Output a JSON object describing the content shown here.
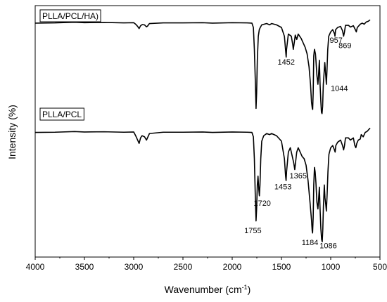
{
  "chart_data": {
    "type": "line",
    "xlabel": "Wavenumber (cm",
    "xlabel_sup": "-1",
    "xlabel_end": ")",
    "ylabel": "Intensity (%)",
    "xlim": [
      4000,
      500
    ],
    "ylim": [
      0,
      100
    ],
    "x_ticks": [
      4000,
      3500,
      3000,
      2500,
      2000,
      1500,
      1000,
      500
    ],
    "grid": false,
    "series": [
      {
        "name": "PLLA/PCL/HA)",
        "offset": 50,
        "color": "#000000",
        "baseline": 42,
        "points": [
          [
            4000,
            42
          ],
          [
            3800,
            42.1
          ],
          [
            3600,
            42.4
          ],
          [
            3500,
            42.2
          ],
          [
            3300,
            42.3
          ],
          [
            3100,
            42.1
          ],
          [
            3000,
            42.2
          ],
          [
            2980,
            41.5
          ],
          [
            2960,
            40.5
          ],
          [
            2945,
            39.5
          ],
          [
            2930,
            40.8
          ],
          [
            2915,
            41.3
          ],
          [
            2890,
            41.2
          ],
          [
            2870,
            40.3
          ],
          [
            2860,
            40.6
          ],
          [
            2840,
            41.8
          ],
          [
            2700,
            42.1
          ],
          [
            2500,
            42.1
          ],
          [
            2300,
            42.2
          ],
          [
            2200,
            42.0
          ],
          [
            2000,
            42.2
          ],
          [
            1850,
            42.1
          ],
          [
            1800,
            42.0
          ],
          [
            1785,
            40
          ],
          [
            1775,
            30
          ],
          [
            1765,
            15
          ],
          [
            1758,
            3
          ],
          [
            1752,
            10
          ],
          [
            1745,
            25
          ],
          [
            1735,
            36
          ],
          [
            1725,
            39
          ],
          [
            1715,
            40
          ],
          [
            1700,
            41.2
          ],
          [
            1650,
            41.8
          ],
          [
            1620,
            41.2
          ],
          [
            1600,
            41.8
          ],
          [
            1550,
            41.2
          ],
          [
            1500,
            40
          ],
          [
            1470,
            36
          ],
          [
            1455,
            28
          ],
          [
            1452,
            26.5
          ],
          [
            1448,
            30
          ],
          [
            1430,
            37
          ],
          [
            1400,
            36
          ],
          [
            1385,
            32
          ],
          [
            1380,
            30
          ],
          [
            1370,
            33
          ],
          [
            1360,
            36.5
          ],
          [
            1345,
            34.5
          ],
          [
            1330,
            37
          ],
          [
            1300,
            35
          ],
          [
            1280,
            33
          ],
          [
            1260,
            31
          ],
          [
            1240,
            28
          ],
          [
            1220,
            22
          ],
          [
            1205,
            14
          ],
          [
            1195,
            6
          ],
          [
            1187,
            3
          ],
          [
            1183,
            2.5
          ],
          [
            1178,
            10
          ],
          [
            1172,
            27
          ],
          [
            1165,
            30
          ],
          [
            1155,
            28
          ],
          [
            1150,
            25
          ],
          [
            1140,
            18
          ],
          [
            1130,
            14
          ],
          [
            1125,
            17
          ],
          [
            1115,
            25
          ],
          [
            1108,
            14
          ],
          [
            1100,
            6
          ],
          [
            1094,
            1.2
          ],
          [
            1088,
            0.6
          ],
          [
            1082,
            4
          ],
          [
            1075,
            14
          ],
          [
            1060,
            24
          ],
          [
            1050,
            18
          ],
          [
            1044,
            14
          ],
          [
            1038,
            20
          ],
          [
            1030,
            30
          ],
          [
            1020,
            36
          ],
          [
            1000,
            38
          ],
          [
            980,
            39
          ],
          [
            960,
            37
          ],
          [
            957,
            36
          ],
          [
            950,
            39
          ],
          [
            930,
            40
          ],
          [
            900,
            40.5
          ],
          [
            880,
            38.5
          ],
          [
            869,
            36
          ],
          [
            860,
            38
          ],
          [
            850,
            41
          ],
          [
            820,
            41
          ],
          [
            800,
            40.2
          ],
          [
            770,
            40.8
          ],
          [
            750,
            39
          ],
          [
            740,
            38
          ],
          [
            730,
            40
          ],
          [
            700,
            41.5
          ],
          [
            680,
            42
          ],
          [
            660,
            41.5
          ],
          [
            640,
            42.5
          ],
          [
            620,
            42.8
          ],
          [
            600,
            43.5
          ]
        ]
      },
      {
        "name": "PLLA/PCL",
        "offset": 0,
        "color": "#000000",
        "baseline": 42,
        "points": [
          [
            4000,
            42
          ],
          [
            3800,
            42.1
          ],
          [
            3600,
            42.4
          ],
          [
            3500,
            42.2
          ],
          [
            3300,
            42.3
          ],
          [
            3100,
            42.1
          ],
          [
            3000,
            42.2
          ],
          [
            2980,
            40.5
          ],
          [
            2960,
            38.5
          ],
          [
            2945,
            37
          ],
          [
            2930,
            39.5
          ],
          [
            2915,
            40.5
          ],
          [
            2890,
            40
          ],
          [
            2870,
            38.5
          ],
          [
            2860,
            39.5
          ],
          [
            2840,
            41.5
          ],
          [
            2700,
            42.1
          ],
          [
            2500,
            42.1
          ],
          [
            2300,
            42.2
          ],
          [
            2200,
            42.0
          ],
          [
            2000,
            42.2
          ],
          [
            1850,
            42.1
          ],
          [
            1800,
            42.0
          ],
          [
            1785,
            40
          ],
          [
            1775,
            30
          ],
          [
            1765,
            12
          ],
          [
            1758,
            1.5
          ],
          [
            1752,
            7
          ],
          [
            1745,
            18
          ],
          [
            1738,
            22
          ],
          [
            1730,
            16
          ],
          [
            1724,
            13
          ],
          [
            1718,
            18
          ],
          [
            1710,
            30
          ],
          [
            1700,
            38
          ],
          [
            1680,
            40.5
          ],
          [
            1650,
            41.5
          ],
          [
            1620,
            41
          ],
          [
            1600,
            41.5
          ],
          [
            1550,
            40.5
          ],
          [
            1500,
            38
          ],
          [
            1470,
            30
          ],
          [
            1458,
            22
          ],
          [
            1453,
            20
          ],
          [
            1448,
            24
          ],
          [
            1430,
            33
          ],
          [
            1410,
            35
          ],
          [
            1400,
            33
          ],
          [
            1385,
            30
          ],
          [
            1375,
            28
          ],
          [
            1365,
            25
          ],
          [
            1355,
            29
          ],
          [
            1345,
            33
          ],
          [
            1330,
            35
          ],
          [
            1310,
            33
          ],
          [
            1290,
            31
          ],
          [
            1270,
            30
          ],
          [
            1250,
            27
          ],
          [
            1230,
            20
          ],
          [
            1210,
            10
          ],
          [
            1195,
            2
          ],
          [
            1188,
            -3
          ],
          [
            1184,
            -4
          ],
          [
            1178,
            3
          ],
          [
            1172,
            18
          ],
          [
            1165,
            26
          ],
          [
            1158,
            24
          ],
          [
            1150,
            19
          ],
          [
            1140,
            10
          ],
          [
            1130,
            7
          ],
          [
            1125,
            10
          ],
          [
            1115,
            17
          ],
          [
            1108,
            7
          ],
          [
            1100,
            -2
          ],
          [
            1092,
            -7
          ],
          [
            1086,
            -8
          ],
          [
            1080,
            -2
          ],
          [
            1074,
            8
          ],
          [
            1065,
            18
          ],
          [
            1058,
            12
          ],
          [
            1050,
            9
          ],
          [
            1044,
            6
          ],
          [
            1036,
            14
          ],
          [
            1028,
            24
          ],
          [
            1018,
            32
          ],
          [
            1000,
            35
          ],
          [
            980,
            36
          ],
          [
            962,
            34
          ],
          [
            955,
            33
          ],
          [
            948,
            36
          ],
          [
            930,
            37.5
          ],
          [
            900,
            38.5
          ],
          [
            880,
            36
          ],
          [
            869,
            34
          ],
          [
            860,
            36
          ],
          [
            850,
            39.5
          ],
          [
            820,
            39.5
          ],
          [
            800,
            38.5
          ],
          [
            770,
            39.5
          ],
          [
            755,
            36
          ],
          [
            745,
            35
          ],
          [
            735,
            37
          ],
          [
            720,
            38.5
          ],
          [
            700,
            39
          ],
          [
            690,
            41
          ],
          [
            670,
            40
          ],
          [
            650,
            42
          ],
          [
            630,
            42.5
          ],
          [
            610,
            43.5
          ],
          [
            600,
            44
          ]
        ]
      }
    ],
    "annotations": [
      {
        "text": "1452",
        "x": 1452,
        "y": 23,
        "series": 0,
        "anchor": "middle"
      },
      {
        "text": "957",
        "x": 945,
        "y": 33,
        "series": 0,
        "anchor": "middle"
      },
      {
        "text": "869",
        "x": 855,
        "y": 30.5,
        "series": 0,
        "anchor": "middle"
      },
      {
        "text": "1044",
        "x": 1000,
        "y": 11,
        "series": 0,
        "anchor": "start"
      },
      {
        "text": "1453",
        "x": 1485,
        "y": 16,
        "series": 1,
        "anchor": "middle"
      },
      {
        "text": "1365",
        "x": 1330,
        "y": 21,
        "series": 1,
        "anchor": "middle"
      },
      {
        "text": "1720",
        "x": 1695,
        "y": 8.5,
        "series": 1,
        "anchor": "middle"
      },
      {
        "text": "1755",
        "x": 1790,
        "y": -4,
        "series": 1,
        "anchor": "middle"
      },
      {
        "text": "1184",
        "x": 1210,
        "y": -9.5,
        "series": 1,
        "anchor": "middle"
      },
      {
        "text": "1086",
        "x": 1025,
        "y": -11,
        "series": 1,
        "anchor": "middle"
      }
    ]
  }
}
